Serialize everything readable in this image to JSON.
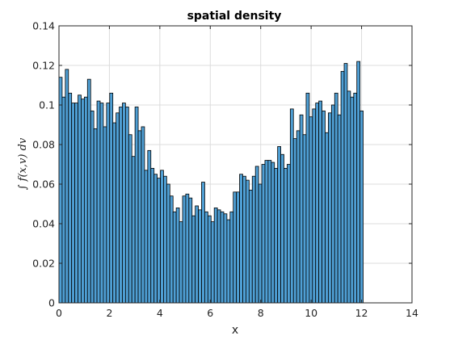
{
  "chart_data": {
    "type": "bar",
    "title": "spatial density",
    "xlabel": "x",
    "ylabel": "∫ f(x,v) dv",
    "xlim": [
      0,
      14
    ],
    "ylim": [
      0,
      0.14
    ],
    "xticks": [
      "0",
      "2",
      "4",
      "6",
      "8",
      "10",
      "12",
      "14"
    ],
    "yticks": [
      "0",
      "0.02",
      "0.04",
      "0.06",
      "0.08",
      "0.1",
      "0.12",
      "0.14"
    ],
    "grid": true,
    "bar_color": "#4f9fd4",
    "bin_width": 0.125664,
    "values": [
      0.114,
      0.104,
      0.118,
      0.106,
      0.101,
      0.101,
      0.105,
      0.103,
      0.104,
      0.113,
      0.097,
      0.088,
      0.102,
      0.101,
      0.089,
      0.101,
      0.106,
      0.091,
      0.096,
      0.099,
      0.101,
      0.099,
      0.085,
      0.074,
      0.099,
      0.087,
      0.089,
      0.067,
      0.077,
      0.068,
      0.065,
      0.063,
      0.067,
      0.064,
      0.06,
      0.054,
      0.046,
      0.048,
      0.041,
      0.054,
      0.055,
      0.053,
      0.044,
      0.049,
      0.047,
      0.061,
      0.046,
      0.044,
      0.041,
      0.048,
      0.047,
      0.046,
      0.045,
      0.042,
      0.046,
      0.056,
      0.056,
      0.065,
      0.064,
      0.062,
      0.057,
      0.064,
      0.069,
      0.06,
      0.07,
      0.072,
      0.072,
      0.071,
      0.068,
      0.079,
      0.075,
      0.068,
      0.07,
      0.098,
      0.083,
      0.087,
      0.095,
      0.085,
      0.106,
      0.094,
      0.098,
      0.101,
      0.102,
      0.097,
      0.086,
      0.096,
      0.1,
      0.106,
      0.095,
      0.117,
      0.121,
      0.107,
      0.104,
      0.106,
      0.122,
      0.097
    ]
  }
}
